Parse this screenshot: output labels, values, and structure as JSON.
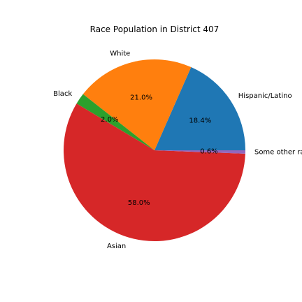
{
  "chart_data": {
    "type": "pie",
    "title": "Race Population in District 407",
    "categories": [
      "Hispanic/Latino",
      "White",
      "Black",
      "Asian",
      "Some other race"
    ],
    "values": [
      18.4,
      21.0,
      2.0,
      58.0,
      0.6
    ],
    "value_labels": [
      "18.4%",
      "21.0%",
      "2.0%",
      "58.0%",
      "0.6%"
    ],
    "visible_labels": [
      "Hispanic/Latino",
      "White",
      "Black",
      "Asian",
      "Some other ra"
    ],
    "colors": [
      "#1f77b4",
      "#ff7f0e",
      "#2ca02c",
      "#d62728",
      "#9467bd"
    ],
    "start_angle_deg": 0,
    "direction": "counterclockwise",
    "legend": "none"
  }
}
